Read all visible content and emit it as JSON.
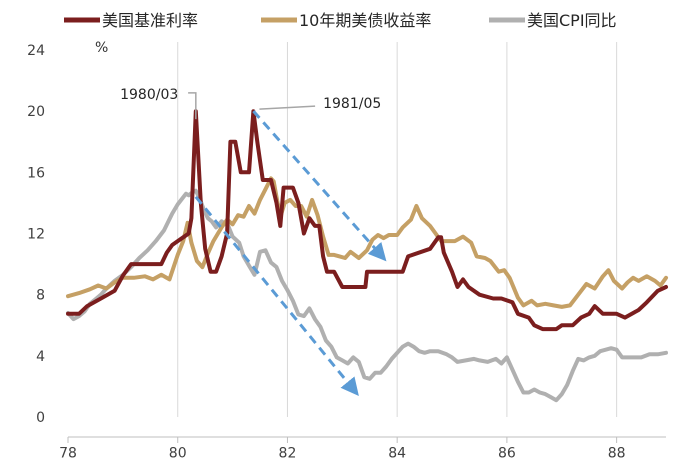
{
  "chart_data": {
    "type": "line",
    "ylabel": "%",
    "xlim": [
      1978.0,
      1988.9
    ],
    "ylim": [
      0,
      24
    ],
    "y_ticks": [
      0,
      4,
      8,
      12,
      16,
      20,
      24
    ],
    "x_ticks": [
      {
        "value": 1978,
        "label": "78"
      },
      {
        "value": 1980,
        "label": "80"
      },
      {
        "value": 1982,
        "label": "82"
      },
      {
        "value": 1984,
        "label": "84"
      },
      {
        "value": 1986,
        "label": "86"
      },
      {
        "value": 1988,
        "label": "88"
      }
    ],
    "grid": {
      "vertical": true,
      "horizontal": false
    },
    "legend_position": "top",
    "series": [
      {
        "name": "美国基准利率",
        "color": "#7B1E1E",
        "points": [
          [
            1978.0,
            6.75
          ],
          [
            1978.2,
            6.75
          ],
          [
            1978.35,
            7.25
          ],
          [
            1978.6,
            7.75
          ],
          [
            1978.85,
            8.25
          ],
          [
            1979.0,
            9.25
          ],
          [
            1979.15,
            10.0
          ],
          [
            1979.5,
            10.0
          ],
          [
            1979.7,
            10.0
          ],
          [
            1979.8,
            10.75
          ],
          [
            1979.9,
            11.25
          ],
          [
            1980.0,
            11.5
          ],
          [
            1980.1,
            11.75
          ],
          [
            1980.2,
            12.0
          ],
          [
            1980.25,
            13.0
          ],
          [
            1980.33,
            20.0
          ],
          [
            1980.42,
            14.0
          ],
          [
            1980.5,
            11.0
          ],
          [
            1980.6,
            9.5
          ],
          [
            1980.7,
            9.5
          ],
          [
            1980.8,
            10.5
          ],
          [
            1980.9,
            12.0
          ],
          [
            1980.96,
            18.0
          ],
          [
            1981.05,
            18.0
          ],
          [
            1981.15,
            16.0
          ],
          [
            1981.3,
            16.0
          ],
          [
            1981.38,
            20.0
          ],
          [
            1981.45,
            18.0
          ],
          [
            1981.55,
            15.5
          ],
          [
            1981.7,
            15.5
          ],
          [
            1981.8,
            14.0
          ],
          [
            1981.87,
            12.5
          ],
          [
            1981.93,
            15.0
          ],
          [
            1982.0,
            15.0
          ],
          [
            1982.1,
            15.0
          ],
          [
            1982.2,
            14.0
          ],
          [
            1982.3,
            12.0
          ],
          [
            1982.4,
            13.0
          ],
          [
            1982.5,
            12.5
          ],
          [
            1982.58,
            12.5
          ],
          [
            1982.65,
            10.5
          ],
          [
            1982.72,
            9.5
          ],
          [
            1982.85,
            9.5
          ],
          [
            1983.0,
            8.5
          ],
          [
            1983.2,
            8.5
          ],
          [
            1983.42,
            8.5
          ],
          [
            1983.45,
            9.5
          ],
          [
            1983.8,
            9.5
          ],
          [
            1983.85,
            9.5
          ],
          [
            1984.0,
            9.5
          ],
          [
            1984.1,
            9.5
          ],
          [
            1984.2,
            10.5
          ],
          [
            1984.6,
            11.0
          ],
          [
            1984.75,
            11.75
          ],
          [
            1984.8,
            11.75
          ],
          [
            1984.85,
            10.75
          ],
          [
            1985.0,
            9.5
          ],
          [
            1985.1,
            8.5
          ],
          [
            1985.2,
            9.0
          ],
          [
            1985.3,
            8.5
          ],
          [
            1985.5,
            8.0
          ],
          [
            1985.75,
            7.75
          ],
          [
            1985.9,
            7.75
          ],
          [
            1986.1,
            7.5
          ],
          [
            1986.2,
            6.75
          ],
          [
            1986.4,
            6.5
          ],
          [
            1986.5,
            6.0
          ],
          [
            1986.65,
            5.75
          ],
          [
            1986.9,
            5.75
          ],
          [
            1987.0,
            6.0
          ],
          [
            1987.2,
            6.0
          ],
          [
            1987.35,
            6.5
          ],
          [
            1987.5,
            6.75
          ],
          [
            1987.6,
            7.25
          ],
          [
            1987.75,
            6.75
          ],
          [
            1988.0,
            6.75
          ],
          [
            1988.15,
            6.5
          ],
          [
            1988.4,
            7.0
          ],
          [
            1988.55,
            7.5
          ],
          [
            1988.75,
            8.25
          ],
          [
            1988.9,
            8.5
          ]
        ]
      },
      {
        "name": "10年期美债收益率",
        "color": "#C5A065",
        "points": [
          [
            1978.0,
            7.9
          ],
          [
            1978.2,
            8.1
          ],
          [
            1978.4,
            8.35
          ],
          [
            1978.55,
            8.6
          ],
          [
            1978.7,
            8.4
          ],
          [
            1978.85,
            8.8
          ],
          [
            1979.0,
            9.1
          ],
          [
            1979.2,
            9.1
          ],
          [
            1979.4,
            9.2
          ],
          [
            1979.55,
            9.0
          ],
          [
            1979.7,
            9.3
          ],
          [
            1979.85,
            9.0
          ],
          [
            1980.0,
            10.6
          ],
          [
            1980.1,
            11.5
          ],
          [
            1980.18,
            12.7
          ],
          [
            1980.25,
            11.4
          ],
          [
            1980.35,
            10.2
          ],
          [
            1980.45,
            9.8
          ],
          [
            1980.55,
            10.7
          ],
          [
            1980.65,
            11.5
          ],
          [
            1980.8,
            12.4
          ],
          [
            1980.9,
            12.9
          ],
          [
            1981.0,
            12.6
          ],
          [
            1981.1,
            13.2
          ],
          [
            1981.2,
            13.1
          ],
          [
            1981.3,
            13.8
          ],
          [
            1981.4,
            13.3
          ],
          [
            1981.5,
            14.2
          ],
          [
            1981.6,
            14.9
          ],
          [
            1981.7,
            15.6
          ],
          [
            1981.75,
            15.4
          ],
          [
            1981.82,
            14.0
          ],
          [
            1981.88,
            13.2
          ],
          [
            1981.95,
            14.0
          ],
          [
            1982.05,
            14.2
          ],
          [
            1982.15,
            13.8
          ],
          [
            1982.25,
            13.8
          ],
          [
            1982.35,
            13.1
          ],
          [
            1982.45,
            14.2
          ],
          [
            1982.55,
            13.2
          ],
          [
            1982.65,
            11.8
          ],
          [
            1982.75,
            10.6
          ],
          [
            1982.85,
            10.6
          ],
          [
            1982.95,
            10.5
          ],
          [
            1983.05,
            10.4
          ],
          [
            1983.15,
            10.8
          ],
          [
            1983.3,
            10.4
          ],
          [
            1983.45,
            10.9
          ],
          [
            1983.55,
            11.6
          ],
          [
            1983.65,
            11.9
          ],
          [
            1983.75,
            11.7
          ],
          [
            1983.85,
            11.9
          ],
          [
            1984.0,
            11.9
          ],
          [
            1984.1,
            12.4
          ],
          [
            1984.25,
            12.9
          ],
          [
            1984.35,
            13.8
          ],
          [
            1984.45,
            13.0
          ],
          [
            1984.6,
            12.5
          ],
          [
            1984.7,
            12.0
          ],
          [
            1984.8,
            11.5
          ],
          [
            1984.95,
            11.5
          ],
          [
            1985.05,
            11.5
          ],
          [
            1985.2,
            11.8
          ],
          [
            1985.35,
            11.4
          ],
          [
            1985.45,
            10.5
          ],
          [
            1985.6,
            10.4
          ],
          [
            1985.7,
            10.2
          ],
          [
            1985.85,
            9.5
          ],
          [
            1985.95,
            9.6
          ],
          [
            1986.05,
            9.1
          ],
          [
            1986.2,
            7.8
          ],
          [
            1986.3,
            7.3
          ],
          [
            1986.45,
            7.6
          ],
          [
            1986.55,
            7.3
          ],
          [
            1986.7,
            7.4
          ],
          [
            1986.85,
            7.3
          ],
          [
            1987.0,
            7.2
          ],
          [
            1987.15,
            7.3
          ],
          [
            1987.3,
            8.0
          ],
          [
            1987.45,
            8.7
          ],
          [
            1987.6,
            8.4
          ],
          [
            1987.75,
            9.2
          ],
          [
            1987.85,
            9.6
          ],
          [
            1987.95,
            8.9
          ],
          [
            1988.1,
            8.4
          ],
          [
            1988.2,
            8.8
          ],
          [
            1988.3,
            9.1
          ],
          [
            1988.4,
            8.9
          ],
          [
            1988.55,
            9.2
          ],
          [
            1988.7,
            8.9
          ],
          [
            1988.8,
            8.6
          ],
          [
            1988.9,
            9.1
          ]
        ]
      },
      {
        "name": "美国CPI同比",
        "color": "#B0B0B0",
        "points": [
          [
            1978.0,
            6.8
          ],
          [
            1978.1,
            6.4
          ],
          [
            1978.2,
            6.6
          ],
          [
            1978.3,
            6.9
          ],
          [
            1978.4,
            7.4
          ],
          [
            1978.5,
            7.7
          ],
          [
            1978.6,
            8.0
          ],
          [
            1978.7,
            8.4
          ],
          [
            1978.85,
            8.9
          ],
          [
            1979.0,
            9.3
          ],
          [
            1979.15,
            9.8
          ],
          [
            1979.3,
            10.4
          ],
          [
            1979.45,
            10.9
          ],
          [
            1979.6,
            11.5
          ],
          [
            1979.75,
            12.2
          ],
          [
            1979.9,
            13.3
          ],
          [
            1980.0,
            13.9
          ],
          [
            1980.15,
            14.6
          ],
          [
            1980.2,
            14.5
          ],
          [
            1980.27,
            14.7
          ],
          [
            1980.33,
            14.8
          ],
          [
            1980.4,
            14.3
          ],
          [
            1980.48,
            13.5
          ],
          [
            1980.55,
            13.0
          ],
          [
            1980.62,
            12.8
          ],
          [
            1980.7,
            12.4
          ],
          [
            1980.8,
            12.8
          ],
          [
            1980.92,
            12.5
          ],
          [
            1981.0,
            11.8
          ],
          [
            1981.12,
            11.4
          ],
          [
            1981.2,
            10.5
          ],
          [
            1981.3,
            9.9
          ],
          [
            1981.4,
            9.3
          ],
          [
            1981.5,
            10.8
          ],
          [
            1981.6,
            10.9
          ],
          [
            1981.7,
            10.1
          ],
          [
            1981.8,
            9.8
          ],
          [
            1981.9,
            8.9
          ],
          [
            1982.0,
            8.3
          ],
          [
            1982.1,
            7.6
          ],
          [
            1982.2,
            6.7
          ],
          [
            1982.3,
            6.6
          ],
          [
            1982.4,
            7.1
          ],
          [
            1982.5,
            6.4
          ],
          [
            1982.6,
            5.9
          ],
          [
            1982.7,
            5.0
          ],
          [
            1982.8,
            4.6
          ],
          [
            1982.9,
            3.9
          ],
          [
            1983.0,
            3.7
          ],
          [
            1983.1,
            3.5
          ],
          [
            1983.2,
            3.9
          ],
          [
            1983.3,
            3.6
          ],
          [
            1983.4,
            2.6
          ],
          [
            1983.5,
            2.5
          ],
          [
            1983.6,
            2.9
          ],
          [
            1983.7,
            2.9
          ],
          [
            1983.8,
            3.3
          ],
          [
            1983.9,
            3.8
          ],
          [
            1984.0,
            4.2
          ],
          [
            1984.1,
            4.6
          ],
          [
            1984.2,
            4.8
          ],
          [
            1984.3,
            4.6
          ],
          [
            1984.4,
            4.3
          ],
          [
            1984.5,
            4.2
          ],
          [
            1984.6,
            4.3
          ],
          [
            1984.75,
            4.3
          ],
          [
            1984.9,
            4.1
          ],
          [
            1985.0,
            3.9
          ],
          [
            1985.1,
            3.6
          ],
          [
            1985.25,
            3.7
          ],
          [
            1985.4,
            3.8
          ],
          [
            1985.5,
            3.7
          ],
          [
            1985.65,
            3.6
          ],
          [
            1985.8,
            3.8
          ],
          [
            1985.9,
            3.5
          ],
          [
            1986.0,
            3.9
          ],
          [
            1986.1,
            3.1
          ],
          [
            1986.2,
            2.3
          ],
          [
            1986.3,
            1.6
          ],
          [
            1986.4,
            1.6
          ],
          [
            1986.5,
            1.8
          ],
          [
            1986.6,
            1.6
          ],
          [
            1986.7,
            1.5
          ],
          [
            1986.8,
            1.3
          ],
          [
            1986.9,
            1.1
          ],
          [
            1987.0,
            1.5
          ],
          [
            1987.1,
            2.1
          ],
          [
            1987.2,
            3.0
          ],
          [
            1987.3,
            3.8
          ],
          [
            1987.4,
            3.7
          ],
          [
            1987.5,
            3.9
          ],
          [
            1987.6,
            4.0
          ],
          [
            1987.7,
            4.3
          ],
          [
            1987.8,
            4.4
          ],
          [
            1987.9,
            4.5
          ],
          [
            1988.0,
            4.4
          ],
          [
            1988.1,
            3.9
          ],
          [
            1988.2,
            3.9
          ],
          [
            1988.3,
            3.9
          ],
          [
            1988.45,
            3.9
          ],
          [
            1988.6,
            4.1
          ],
          [
            1988.75,
            4.1
          ],
          [
            1988.9,
            4.2
          ]
        ]
      }
    ],
    "annotations": [
      {
        "id": "ann-1980-03",
        "text": "1980/03",
        "x": 1980.33,
        "y": 20.0,
        "label_x": 1978.95,
        "label_y": 20.8
      },
      {
        "id": "ann-1981-05",
        "text": "1981/05",
        "x": 1981.38,
        "y": 20.0,
        "label_x": 1982.65,
        "label_y": 20.2
      }
    ],
    "trend_arrows": [
      {
        "id": "arrow-rate-decline",
        "color": "#5B9BD5",
        "from": [
          1981.38,
          20.0
        ],
        "to": [
          1983.75,
          10.4
        ]
      },
      {
        "id": "arrow-cpi-decline",
        "color": "#5B9BD5",
        "from": [
          1980.33,
          14.4
        ],
        "to": [
          1983.25,
          1.6
        ]
      }
    ]
  }
}
